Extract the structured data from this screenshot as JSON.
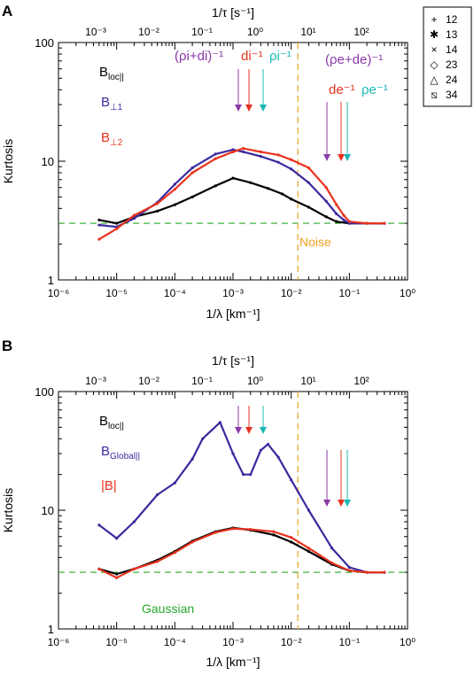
{
  "colors": {
    "black": "#000000",
    "blue": "#3a2a9e",
    "red": "#e8321e",
    "purple": "#8b3aa8",
    "orange_red": "#e8321e",
    "cyan": "#1ab8b4",
    "green": "#2aa82a",
    "noise_orange": "#f0a020"
  },
  "legend": {
    "items": [
      {
        "symbol": "+",
        "label": "12"
      },
      {
        "symbol": "✱",
        "label": "13"
      },
      {
        "symbol": "×",
        "label": "14"
      },
      {
        "symbol": "◇",
        "label": "23"
      },
      {
        "symbol": "△",
        "label": "24"
      },
      {
        "symbol": "⧅",
        "label": "34"
      }
    ]
  },
  "chart_data": [
    {
      "type": "line",
      "panel_label": "A",
      "xlabel": "1/λ [km⁻¹]",
      "x2label": "1/τ [s⁻¹]",
      "ylabel": "Kurtosis",
      "xscale": "log",
      "yscale": "log",
      "xlim": [
        1e-06,
        1
      ],
      "ylim": [
        1,
        100
      ],
      "x_ticks": [
        "10⁻⁶",
        "10⁻⁵",
        "10⁻⁴",
        "10⁻³",
        "10⁻²",
        "10⁻¹",
        "10⁰"
      ],
      "x2_ticks": [
        "10⁻³",
        "10⁻²",
        "10⁻¹",
        "10⁰",
        "10¹",
        "10²"
      ],
      "y_ticks": [
        "1",
        "10",
        "100"
      ],
      "annotations": [
        {
          "text": "(ρi+di)⁻¹",
          "color": "purple",
          "x": 0.00055
        },
        {
          "text": "di⁻¹",
          "color": "red",
          "x": 0.0017
        },
        {
          "text": "ρi⁻¹",
          "color": "cyan",
          "x": 0.0035
        },
        {
          "text": "(ρe+de)⁻¹",
          "color": "purple",
          "x": 0.075
        },
        {
          "text": "de⁻¹",
          "color": "red",
          "x": 0.07
        },
        {
          "text": "ρe⁻¹",
          "color": "cyan",
          "x": 0.12
        }
      ],
      "noise_label": "Noise",
      "series_labels": {
        "b_loc": "B",
        "b_loc_sub": "loc||",
        "b_perp1": "B",
        "b_perp1_sub": "⊥1",
        "b_perp2": "B",
        "b_perp2_sub": "⊥2"
      },
      "series": [
        {
          "name": "B_loc||",
          "color": "black",
          "x": [
            5e-06,
            1e-05,
            2e-05,
            5e-05,
            0.0001,
            0.0002,
            0.0005,
            0.001,
            0.002,
            0.004,
            0.007,
            0.01,
            0.02,
            0.04,
            0.06,
            0.1,
            0.2,
            0.4
          ],
          "y": [
            3.2,
            3.0,
            3.4,
            3.8,
            4.3,
            5.0,
            6.2,
            7.2,
            6.6,
            5.9,
            5.3,
            4.8,
            4.1,
            3.4,
            3.1,
            3.0,
            3.0,
            3.0
          ]
        },
        {
          "name": "B⊥1",
          "color": "blue",
          "x": [
            5e-06,
            1e-05,
            2e-05,
            5e-05,
            0.0001,
            0.0002,
            0.0005,
            0.001,
            0.0015,
            0.003,
            0.006,
            0.01,
            0.02,
            0.04,
            0.06,
            0.08,
            0.1,
            0.2,
            0.4
          ],
          "y": [
            2.9,
            2.8,
            3.3,
            4.5,
            6.4,
            8.8,
            11.5,
            12.5,
            12.0,
            11.0,
            9.8,
            8.6,
            6.6,
            4.6,
            3.6,
            3.2,
            3.0,
            3.0,
            3.0
          ]
        },
        {
          "name": "B⊥2",
          "color": "red",
          "x": [
            5e-06,
            1e-05,
            2e-05,
            5e-05,
            0.0001,
            0.0002,
            0.0005,
            0.001,
            0.0015,
            0.003,
            0.006,
            0.01,
            0.02,
            0.04,
            0.06,
            0.08,
            0.1,
            0.2,
            0.4
          ],
          "y": [
            2.2,
            2.7,
            3.5,
            4.4,
            5.8,
            8.0,
            10.5,
            12.0,
            12.8,
            12.0,
            11.3,
            10.3,
            8.8,
            6.0,
            4.3,
            3.5,
            3.1,
            3.0,
            3.0
          ]
        }
      ],
      "reference_lines": [
        {
          "name": "gaussian",
          "y": 3,
          "color": "green",
          "style": "dashed"
        },
        {
          "name": "noise",
          "x": 0.013,
          "color": "noise_orange",
          "style": "dashed"
        }
      ]
    },
    {
      "type": "line",
      "panel_label": "B",
      "xlabel": "1/λ [km⁻¹]",
      "x2label": "1/τ [s⁻¹]",
      "ylabel": "Kurtosis",
      "xscale": "log",
      "yscale": "log",
      "xlim": [
        1e-06,
        1
      ],
      "ylim": [
        1,
        100
      ],
      "x_ticks": [
        "10⁻⁶",
        "10⁻⁵",
        "10⁻⁴",
        "10⁻³",
        "10⁻²",
        "10⁻¹",
        "10⁰"
      ],
      "x2_ticks": [
        "10⁻³",
        "10⁻²",
        "10⁻¹",
        "10⁰",
        "10¹",
        "10²"
      ],
      "y_ticks": [
        "1",
        "10",
        "100"
      ],
      "annotations": [],
      "gaussian_label": "Gaussian",
      "series_labels": {
        "b_loc": "B",
        "b_loc_sub": "loc||",
        "b_global": "B",
        "b_global_sub": "Global||",
        "b_mag": "|B|"
      },
      "series": [
        {
          "name": "B_loc||",
          "color": "black",
          "x": [
            5e-06,
            1e-05,
            2e-05,
            5e-05,
            0.0001,
            0.0002,
            0.0005,
            0.001,
            0.002,
            0.005,
            0.01,
            0.02,
            0.05,
            0.1,
            0.2,
            0.4
          ],
          "y": [
            3.2,
            2.9,
            3.2,
            3.8,
            4.5,
            5.5,
            6.6,
            7.1,
            6.8,
            6.2,
            5.4,
            4.5,
            3.5,
            3.1,
            3.0,
            3.0
          ]
        },
        {
          "name": "B_Global||",
          "color": "blue",
          "x": [
            5e-06,
            1e-05,
            2e-05,
            5e-05,
            0.0001,
            0.0002,
            0.0003,
            0.0006,
            0.001,
            0.0015,
            0.002,
            0.003,
            0.004,
            0.006,
            0.01,
            0.02,
            0.05,
            0.1,
            0.2,
            0.4
          ],
          "y": [
            7.5,
            5.8,
            8.0,
            13.5,
            17.0,
            27.0,
            40.0,
            55.0,
            30.0,
            20.0,
            20.0,
            32.0,
            36.0,
            28.0,
            18.0,
            10.0,
            4.8,
            3.3,
            3.0,
            3.0
          ]
        },
        {
          "name": "|B|",
          "color": "red",
          "x": [
            5e-06,
            1e-05,
            2e-05,
            5e-05,
            0.0001,
            0.0002,
            0.0005,
            0.001,
            0.002,
            0.005,
            0.01,
            0.02,
            0.05,
            0.1,
            0.2,
            0.4
          ],
          "y": [
            3.2,
            2.7,
            3.2,
            3.7,
            4.4,
            5.4,
            6.5,
            7.0,
            6.9,
            6.6,
            5.9,
            4.8,
            3.6,
            3.1,
            3.0,
            3.0
          ]
        }
      ],
      "reference_lines": [
        {
          "name": "gaussian",
          "y": 3,
          "color": "green",
          "style": "dashed"
        },
        {
          "name": "noise",
          "x": 0.013,
          "color": "noise_orange",
          "style": "dashed"
        }
      ]
    }
  ]
}
